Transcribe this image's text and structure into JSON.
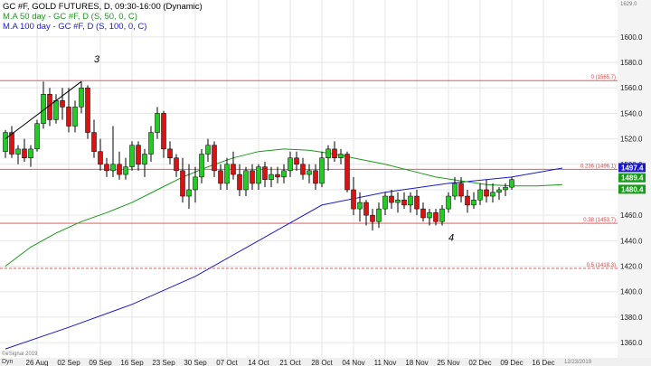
{
  "legend": {
    "title": "GC #F, GOLD FUTURES, D, 09:30-16:00 (Dynamic)",
    "ma50": "M.A 50 day - GC #F, D (S, 50, 0, C)",
    "ma100": "M.A 100 day - GC #F, D (S, 100, 0, C)"
  },
  "corner": {
    "top_right": "1629.0",
    "bottom_left_a": "Dyn",
    "bottom_left_b": "©eSignal 2019",
    "bottom_right": "12/23/2019"
  },
  "colors": {
    "up": "#22cc22",
    "down": "#dd1111",
    "ma50": "#1a9a1a",
    "ma100": "#1a1acc",
    "fib": "#dd4444",
    "grid": "#e6e6e6",
    "axis_bg": "#f4f4f4"
  },
  "chart_data": {
    "type": "candlestick",
    "title": "GC #F, GOLD FUTURES, D, 09:30-16:00 (Dynamic)",
    "ylim": [
      1348,
      1629
    ],
    "y_ticks": [
      1360,
      1380,
      1400,
      1420,
      1440,
      1460,
      1480,
      1500,
      1520,
      1540,
      1560,
      1580,
      1600
    ],
    "x_tick_labels": [
      {
        "label": "26 Aug",
        "i": 5
      },
      {
        "label": "02 Sep",
        "i": 10
      },
      {
        "label": "09 Sep",
        "i": 15
      },
      {
        "label": "16 Sep",
        "i": 20
      },
      {
        "label": "23 Sep",
        "i": 25
      },
      {
        "label": "30 Sep",
        "i": 30
      },
      {
        "label": "07 Oct",
        "i": 35
      },
      {
        "label": "14 Oct",
        "i": 40
      },
      {
        "label": "21 Oct",
        "i": 45
      },
      {
        "label": "28 Oct",
        "i": 50
      },
      {
        "label": "04 Nov",
        "i": 55
      },
      {
        "label": "11 Nov",
        "i": 60
      },
      {
        "label": "18 Nov",
        "i": 65
      },
      {
        "label": "25 Nov",
        "i": 70
      },
      {
        "label": "02 Dec",
        "i": 75
      },
      {
        "label": "09 Dec",
        "i": 80
      },
      {
        "label": "16 Dec",
        "i": 85
      }
    ],
    "candles": [
      [
        1510,
        1527,
        1505,
        1525
      ],
      [
        1525,
        1530,
        1505,
        1508
      ],
      [
        1508,
        1515,
        1500,
        1512
      ],
      [
        1512,
        1520,
        1502,
        1505
      ],
      [
        1505,
        1515,
        1498,
        1512
      ],
      [
        1512,
        1535,
        1510,
        1532
      ],
      [
        1532,
        1565,
        1528,
        1555
      ],
      [
        1555,
        1560,
        1530,
        1535
      ],
      [
        1535,
        1555,
        1532,
        1550
      ],
      [
        1550,
        1560,
        1535,
        1545
      ],
      [
        1545,
        1560,
        1525,
        1530
      ],
      [
        1530,
        1550,
        1525,
        1545
      ],
      [
        1545,
        1565,
        1540,
        1560
      ],
      [
        1560,
        1562,
        1520,
        1525
      ],
      [
        1525,
        1535,
        1505,
        1510
      ],
      [
        1510,
        1520,
        1495,
        1500
      ],
      [
        1500,
        1505,
        1490,
        1495
      ],
      [
        1495,
        1530,
        1490,
        1500
      ],
      [
        1500,
        1510,
        1488,
        1492
      ],
      [
        1492,
        1505,
        1488,
        1498
      ],
      [
        1498,
        1518,
        1495,
        1515
      ],
      [
        1515,
        1518,
        1495,
        1500
      ],
      [
        1500,
        1512,
        1490,
        1508
      ],
      [
        1508,
        1530,
        1502,
        1525
      ],
      [
        1525,
        1545,
        1520,
        1540
      ],
      [
        1540,
        1542,
        1505,
        1512
      ],
      [
        1512,
        1518,
        1500,
        1505
      ],
      [
        1505,
        1508,
        1490,
        1495
      ],
      [
        1495,
        1505,
        1470,
        1475
      ],
      [
        1475,
        1500,
        1465,
        1480
      ],
      [
        1480,
        1498,
        1470,
        1490
      ],
      [
        1490,
        1512,
        1485,
        1508
      ],
      [
        1508,
        1520,
        1502,
        1515
      ],
      [
        1515,
        1518,
        1490,
        1495
      ],
      [
        1495,
        1500,
        1480,
        1485
      ],
      [
        1485,
        1505,
        1480,
        1500
      ],
      [
        1500,
        1510,
        1488,
        1492
      ],
      [
        1492,
        1500,
        1475,
        1480
      ],
      [
        1480,
        1498,
        1475,
        1495
      ],
      [
        1495,
        1500,
        1480,
        1485
      ],
      [
        1485,
        1500,
        1480,
        1498
      ],
      [
        1498,
        1502,
        1482,
        1488
      ],
      [
        1488,
        1498,
        1482,
        1492
      ],
      [
        1492,
        1498,
        1485,
        1490
      ],
      [
        1490,
        1500,
        1485,
        1495
      ],
      [
        1495,
        1510,
        1490,
        1505
      ],
      [
        1505,
        1510,
        1495,
        1500
      ],
      [
        1500,
        1505,
        1488,
        1492
      ],
      [
        1492,
        1500,
        1485,
        1495
      ],
      [
        1495,
        1500,
        1480,
        1485
      ],
      [
        1485,
        1510,
        1482,
        1505
      ],
      [
        1505,
        1515,
        1495,
        1512
      ],
      [
        1512,
        1518,
        1502,
        1505
      ],
      [
        1505,
        1512,
        1500,
        1508
      ],
      [
        1508,
        1510,
        1478,
        1480
      ],
      [
        1480,
        1490,
        1460,
        1465
      ],
      [
        1465,
        1478,
        1455,
        1470
      ],
      [
        1470,
        1472,
        1452,
        1460
      ],
      [
        1460,
        1465,
        1448,
        1455
      ],
      [
        1455,
        1470,
        1450,
        1465
      ],
      [
        1465,
        1478,
        1460,
        1475
      ],
      [
        1475,
        1480,
        1465,
        1470
      ],
      [
        1470,
        1478,
        1462,
        1472
      ],
      [
        1472,
        1478,
        1465,
        1468
      ],
      [
        1468,
        1478,
        1462,
        1475
      ],
      [
        1475,
        1480,
        1460,
        1465
      ],
      [
        1465,
        1470,
        1455,
        1458
      ],
      [
        1458,
        1465,
        1452,
        1462
      ],
      [
        1462,
        1465,
        1452,
        1455
      ],
      [
        1455,
        1468,
        1452,
        1465
      ],
      [
        1465,
        1478,
        1462,
        1475
      ],
      [
        1475,
        1490,
        1472,
        1485
      ],
      [
        1485,
        1490,
        1470,
        1475
      ],
      [
        1475,
        1480,
        1462,
        1468
      ],
      [
        1468,
        1478,
        1465,
        1472
      ],
      [
        1472,
        1485,
        1468,
        1480
      ],
      [
        1480,
        1488,
        1470,
        1475
      ],
      [
        1475,
        1485,
        1470,
        1478
      ],
      [
        1478,
        1482,
        1472,
        1480
      ],
      [
        1480,
        1485,
        1475,
        1482
      ],
      [
        1482,
        1490,
        1480,
        1488
      ]
    ],
    "ma50": [
      [
        0,
        1420
      ],
      [
        4,
        1435
      ],
      [
        8,
        1446
      ],
      [
        12,
        1455
      ],
      [
        16,
        1462
      ],
      [
        20,
        1470
      ],
      [
        24,
        1480
      ],
      [
        28,
        1490
      ],
      [
        32,
        1498
      ],
      [
        36,
        1505
      ],
      [
        40,
        1510
      ],
      [
        44,
        1512
      ],
      [
        48,
        1511
      ],
      [
        52,
        1508
      ],
      [
        56,
        1504
      ],
      [
        60,
        1500
      ],
      [
        64,
        1495
      ],
      [
        68,
        1490
      ],
      [
        72,
        1487
      ],
      [
        76,
        1484
      ],
      [
        80,
        1483
      ],
      [
        84,
        1483
      ],
      [
        88,
        1484
      ]
    ],
    "ma100": [
      [
        0,
        1355
      ],
      [
        10,
        1372
      ],
      [
        20,
        1390
      ],
      [
        30,
        1412
      ],
      [
        40,
        1440
      ],
      [
        50,
        1468
      ],
      [
        60,
        1478
      ],
      [
        70,
        1485
      ],
      [
        80,
        1490
      ],
      [
        88,
        1497
      ]
    ],
    "fib_levels": [
      {
        "label": "0 (1565.7)",
        "value": 1565.7
      },
      {
        "label": "0.236 (1496.1)",
        "value": 1496.1
      },
      {
        "label": "0.38 (1453.7)",
        "value": 1453.7
      },
      {
        "label": "0.5 (1418.3)",
        "value": 1418.3
      }
    ],
    "price_tags": [
      {
        "label": "1497.4",
        "value": 1497.4,
        "color": "#1a1acc"
      },
      {
        "label": "1489.4",
        "value": 1489.4,
        "color": "#1a9a1a"
      },
      {
        "label": "1480.4",
        "value": 1480.4,
        "color": "#1a9a1a"
      }
    ],
    "wave_labels": [
      {
        "label": "3",
        "i": 14,
        "value": 1580
      },
      {
        "label": "4",
        "i": 70,
        "value": 1440
      }
    ],
    "trend_line": [
      [
        0,
        1520
      ],
      [
        12,
        1565
      ]
    ]
  }
}
